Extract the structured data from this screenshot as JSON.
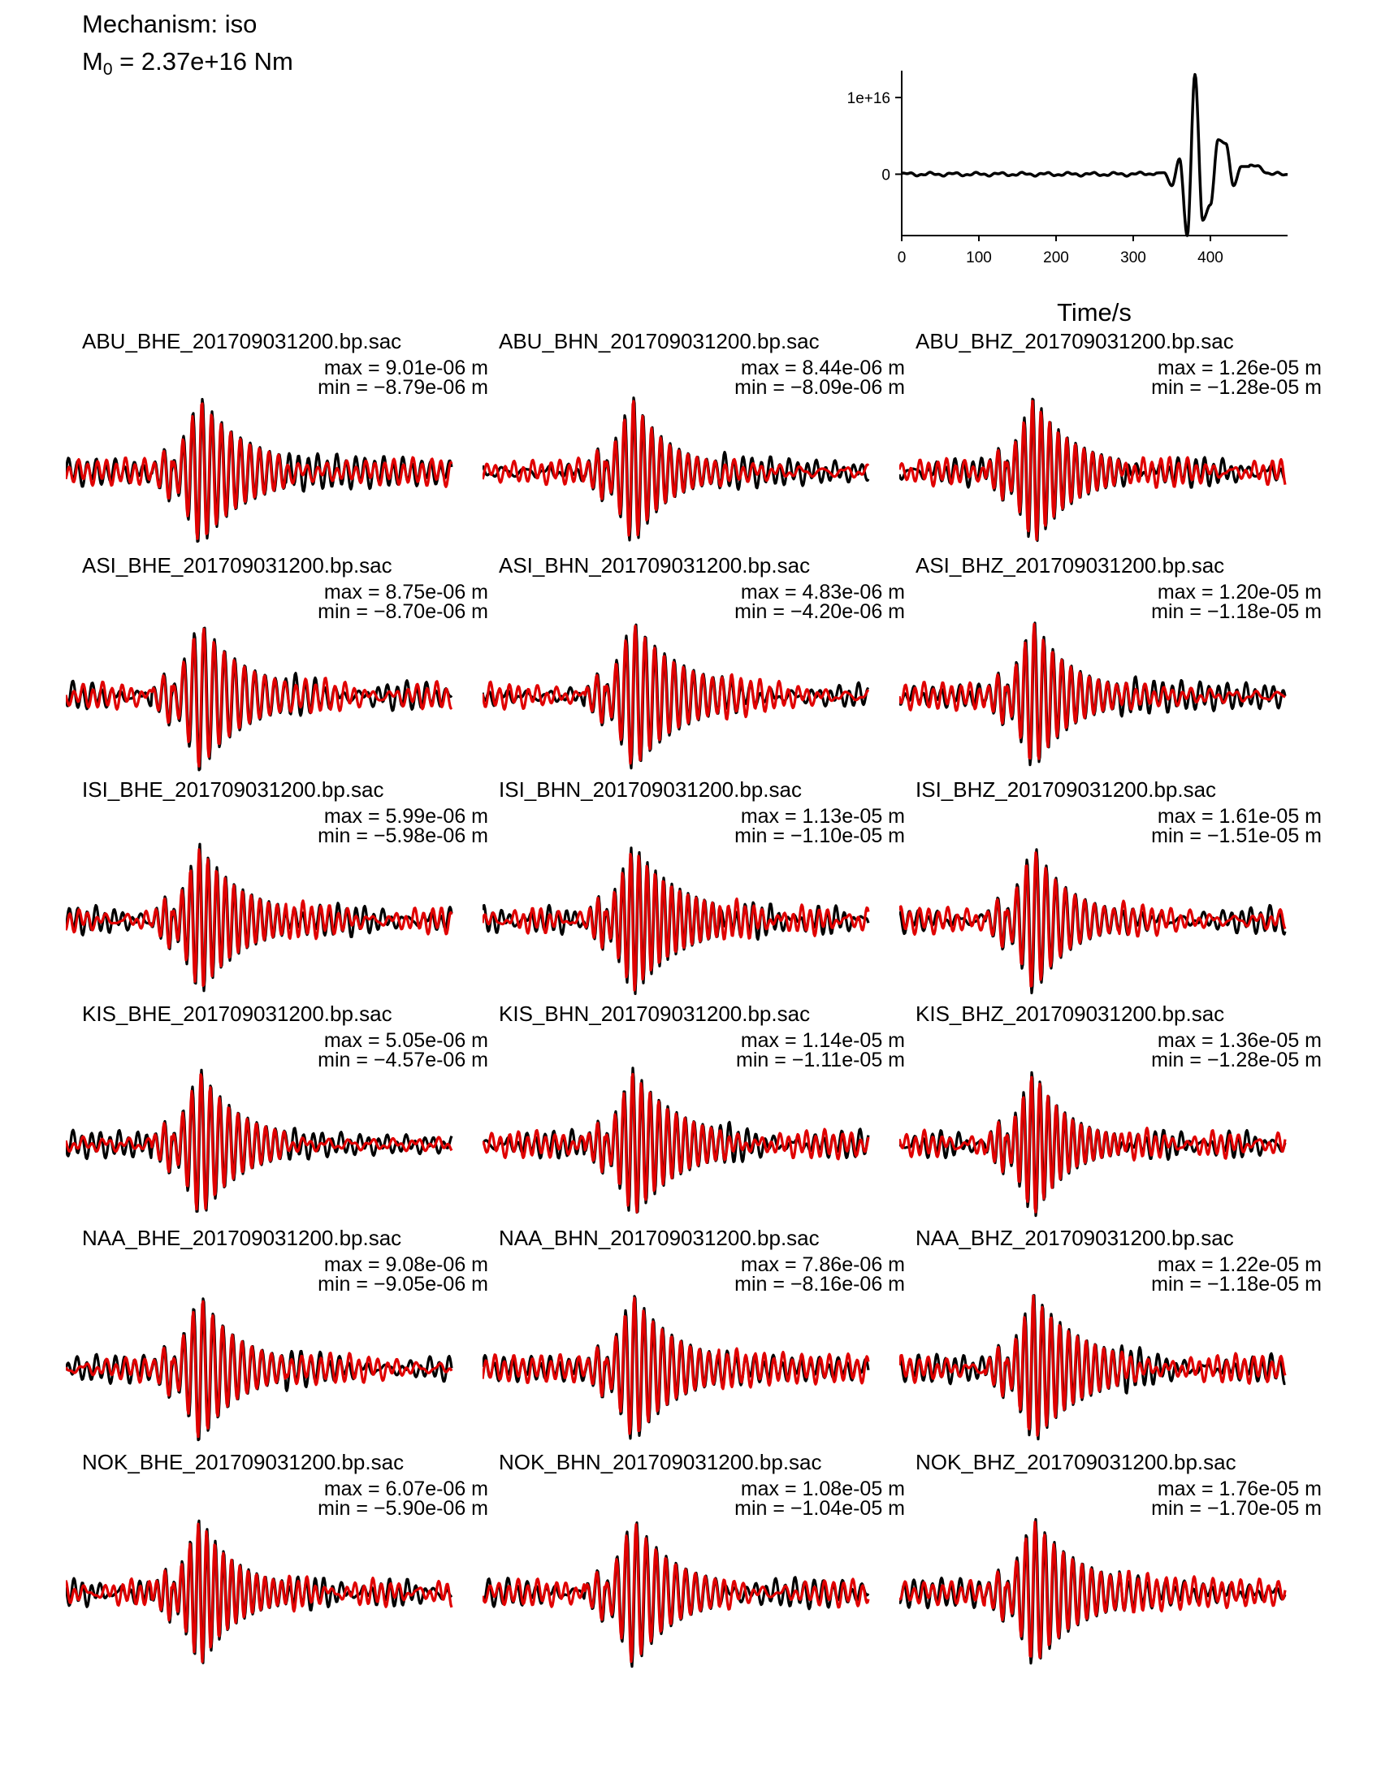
{
  "header": {
    "mechanism": "Mechanism: iso",
    "m0_prefix": "M",
    "m0_sub": "0",
    "m0_value": " = 2.37e+16 Nm"
  },
  "colors": {
    "observed": "#000000",
    "synthetic": "#e00000"
  },
  "chart_data": [
    {
      "type": "line",
      "title": "",
      "xlabel": "Time/s",
      "ylabel": "",
      "xlim": [
        0,
        500
      ],
      "ylim": [
        -8000000000000000.0,
        1.35e+16
      ],
      "xticks": [
        "0",
        "100",
        "200",
        "300",
        "400"
      ],
      "yticks": [
        "1e+16",
        "0"
      ],
      "series": [
        {
          "x": [
            0,
            50,
            100,
            150,
            200,
            250,
            300,
            320,
            340,
            350,
            360,
            370,
            380,
            390,
            400,
            410,
            420,
            430,
            440,
            460,
            480,
            500
          ],
          "values": [
            0,
            0,
            0,
            0,
            0,
            0,
            0,
            100000000000000.0,
            200000000000000.0,
            -1500000000000000.0,
            2000000000000000.0,
            -8000000000000000.0,
            1.3e+16,
            -6000000000000000.0,
            -4000000000000000.0,
            4500000000000000.0,
            4000000000000000.0,
            -1500000000000000.0,
            1000000000000000.0,
            1000000000000000.0,
            0,
            0
          ]
        }
      ]
    },
    {
      "type": "line",
      "grid": "6x3",
      "panels": [
        {
          "title": "ABU_BHE_201709031200.bp.sac",
          "max": "max = 9.01e-06 m",
          "min": "min = −8.79e-06 m"
        },
        {
          "title": "ABU_BHN_201709031200.bp.sac",
          "max": "max = 8.44e-06 m",
          "min": "min = −8.09e-06 m"
        },
        {
          "title": "ABU_BHZ_201709031200.bp.sac",
          "max": "max = 1.26e-05 m",
          "min": "min = −1.28e-05 m"
        },
        {
          "title": "ASI_BHE_201709031200.bp.sac",
          "max": "max = 8.75e-06 m",
          "min": "min = −8.70e-06 m"
        },
        {
          "title": "ASI_BHN_201709031200.bp.sac",
          "max": "max = 4.83e-06 m",
          "min": "min = −4.20e-06 m"
        },
        {
          "title": "ASI_BHZ_201709031200.bp.sac",
          "max": "max = 1.20e-05 m",
          "min": "min = −1.18e-05 m"
        },
        {
          "title": "ISI_BHE_201709031200.bp.sac",
          "max": "max = 5.99e-06 m",
          "min": "min = −5.98e-06 m"
        },
        {
          "title": "ISI_BHN_201709031200.bp.sac",
          "max": "max = 1.13e-05 m",
          "min": "min = −1.10e-05 m"
        },
        {
          "title": "ISI_BHZ_201709031200.bp.sac",
          "max": "max = 1.61e-05 m",
          "min": "min = −1.51e-05 m"
        },
        {
          "title": "KIS_BHE_201709031200.bp.sac",
          "max": "max = 5.05e-06 m",
          "min": "min = −4.57e-06 m"
        },
        {
          "title": "KIS_BHN_201709031200.bp.sac",
          "max": "max = 1.14e-05 m",
          "min": "min = −1.11e-05 m"
        },
        {
          "title": "KIS_BHZ_201709031200.bp.sac",
          "max": "max = 1.36e-05 m",
          "min": "min = −1.28e-05 m"
        },
        {
          "title": "NAA_BHE_201709031200.bp.sac",
          "max": "max = 9.08e-06 m",
          "min": "min = −9.05e-06 m"
        },
        {
          "title": "NAA_BHN_201709031200.bp.sac",
          "max": "max = 7.86e-06 m",
          "min": "min = −8.16e-06 m"
        },
        {
          "title": "NAA_BHZ_201709031200.bp.sac",
          "max": "max = 1.22e-05 m",
          "min": "min = −1.18e-05 m"
        },
        {
          "title": "NOK_BHE_201709031200.bp.sac",
          "max": "max = 6.07e-06 m",
          "min": "min = −5.90e-06 m"
        },
        {
          "title": "NOK_BHN_201709031200.bp.sac",
          "max": "max = 1.08e-05 m",
          "min": "min = −1.04e-05 m"
        },
        {
          "title": "NOK_BHZ_201709031200.bp.sac",
          "max": "max = 1.76e-05 m",
          "min": "min = −1.70e-05 m"
        }
      ]
    }
  ]
}
